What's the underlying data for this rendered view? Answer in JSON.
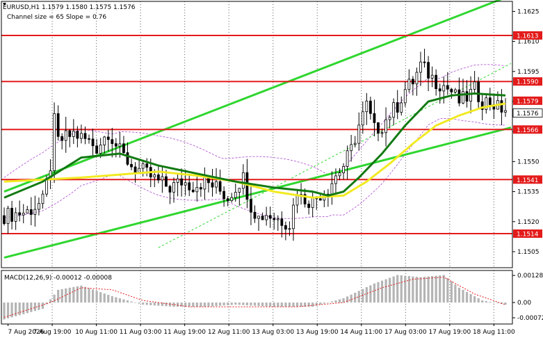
{
  "header": {
    "symbol_line": "EURUSD,H1  1.1579 1.1580 1.1575 1.1576",
    "channel_line": "Channel size = 65 Slope = 0.76"
  },
  "macd": {
    "label": "MACD(12,26,9) -0.00012 -0.00008"
  },
  "chart_data": [
    {
      "type": "candlestick",
      "symbol": "EURUSD",
      "timeframe": "H1",
      "ohlc_last": {
        "open": 1.1579,
        "high": 1.158,
        "low": 1.1575,
        "close": 1.1576
      },
      "y_ticks": [
        1.1625,
        1.161,
        1.1595,
        1.158,
        1.1565,
        1.155,
        1.1535,
        1.152,
        1.1505
      ],
      "x_ticks": [
        "7 Aug 2026",
        "7 Aug 19:00",
        "10 Aug 11:00",
        "11 Aug 03:00",
        "11 Aug 19:00",
        "12 Aug 11:00",
        "13 Aug 03:00",
        "13 Aug 19:00",
        "14 Aug 11:00",
        "17 Aug 03:00",
        "17 Aug 19:00",
        "18 Aug 11:00"
      ],
      "ylim": [
        1.1497,
        1.163
      ],
      "price_levels": [
        {
          "value": 1.1613,
          "label": "1.1613"
        },
        {
          "value": 1.159,
          "label": "1.1590"
        },
        {
          "value": 1.1566,
          "label": "1.1566"
        },
        {
          "value": 1.1541,
          "label": "1.1541"
        },
        {
          "value": 1.1514,
          "label": "1.1514"
        }
      ],
      "price_tags": [
        {
          "value": 1.1579,
          "label": "1.1579"
        },
        {
          "value": 1.1576,
          "label": "1.1576"
        }
      ],
      "close_path": [
        [
          0,
          1.1523
        ],
        [
          6,
          1.1525
        ],
        [
          10,
          1.153
        ],
        [
          12,
          1.1548
        ],
        [
          13,
          1.157
        ],
        [
          14,
          1.156
        ],
        [
          16,
          1.1562
        ],
        [
          18,
          1.1564
        ],
        [
          22,
          1.156
        ],
        [
          24,
          1.1557
        ],
        [
          27,
          1.1565
        ],
        [
          30,
          1.1555
        ],
        [
          33,
          1.1548
        ],
        [
          36,
          1.1545
        ],
        [
          40,
          1.154
        ],
        [
          43,
          1.1537
        ],
        [
          46,
          1.154
        ],
        [
          49,
          1.1538
        ],
        [
          52,
          1.154
        ],
        [
          55,
          1.1537
        ],
        [
          58,
          1.1532
        ],
        [
          61,
          1.154
        ],
        [
          62,
          1.1542
        ],
        [
          64,
          1.1528
        ],
        [
          66,
          1.1522
        ],
        [
          68,
          1.1524
        ],
        [
          70,
          1.1522
        ],
        [
          73,
          1.152
        ],
        [
          74,
          1.1519
        ],
        [
          76,
          1.1536
        ],
        [
          77,
          1.1532
        ],
        [
          80,
          1.153
        ],
        [
          82,
          1.1534
        ],
        [
          84,
          1.1537
        ],
        [
          86,
          1.1543
        ],
        [
          88,
          1.1548
        ],
        [
          90,
          1.1556
        ],
        [
          92,
          1.1568
        ],
        [
          94,
          1.1578
        ],
        [
          96,
          1.1566
        ],
        [
          98,
          1.1568
        ],
        [
          100,
          1.1574
        ],
        [
          102,
          1.1578
        ],
        [
          104,
          1.1586
        ],
        [
          106,
          1.159
        ],
        [
          108,
          1.1598
        ],
        [
          110,
          1.1594
        ],
        [
          112,
          1.159
        ],
        [
          114,
          1.1588
        ],
        [
          116,
          1.1585
        ],
        [
          118,
          1.158
        ],
        [
          120,
          1.1582
        ],
        [
          122,
          1.1586
        ],
        [
          124,
          1.158
        ],
        [
          126,
          1.158
        ],
        [
          128,
          1.1577
        ],
        [
          130,
          1.1576
        ]
      ],
      "ma_green": [
        [
          0,
          1.1532
        ],
        [
          10,
          1.154
        ],
        [
          20,
          1.1552
        ],
        [
          30,
          1.1554
        ],
        [
          40,
          1.1548
        ],
        [
          50,
          1.1544
        ],
        [
          60,
          1.154
        ],
        [
          70,
          1.1537
        ],
        [
          80,
          1.1535
        ],
        [
          84,
          1.1533
        ],
        [
          88,
          1.1535
        ],
        [
          92,
          1.1542
        ],
        [
          98,
          1.1554
        ],
        [
          104,
          1.1568
        ],
        [
          110,
          1.158
        ],
        [
          116,
          1.1583
        ],
        [
          122,
          1.1584
        ],
        [
          130,
          1.1583
        ]
      ],
      "ma_yellow": [
        [
          0,
          1.154
        ],
        [
          20,
          1.1542
        ],
        [
          40,
          1.1545
        ],
        [
          50,
          1.1543
        ],
        [
          60,
          1.154
        ],
        [
          70,
          1.1535
        ],
        [
          80,
          1.1532
        ],
        [
          88,
          1.1533
        ],
        [
          94,
          1.154
        ],
        [
          100,
          1.1549
        ],
        [
          106,
          1.1559
        ],
        [
          112,
          1.1568
        ],
        [
          118,
          1.1573
        ],
        [
          124,
          1.1577
        ],
        [
          130,
          1.1579
        ]
      ],
      "channel": {
        "lower": [
          [
            0,
            1.1502
          ],
          [
            130,
            1.1567
          ]
        ],
        "upper": [
          [
            0,
            1.1535
          ],
          [
            130,
            1.1633
          ]
        ],
        "mid": [
          [
            40,
            1.1507
          ],
          [
            130,
            1.1599
          ]
        ]
      },
      "colors": {
        "level": "#e31b1b",
        "channel": "#2fd62f",
        "ma_green": "#127a12",
        "ma_yellow": "#f2ea22",
        "envelope": "#b35bd6",
        "candle": "#000000"
      }
    },
    {
      "type": "histogram",
      "name": "MACD(12,26,9)",
      "values_text": "-0.00012 -0.00008",
      "y_ticks": [
        "0.00128",
        "0.00",
        "-0.00072"
      ],
      "histogram_path": [
        [
          0,
          -0.0008
        ],
        [
          10,
          -0.0003
        ],
        [
          14,
          0.0006
        ],
        [
          20,
          0.0008
        ],
        [
          28,
          0.0003
        ],
        [
          36,
          -0.0001
        ],
        [
          44,
          -0.0002
        ],
        [
          52,
          -0.0002
        ],
        [
          60,
          -0.0001
        ],
        [
          70,
          -0.0002
        ],
        [
          80,
          -0.0002
        ],
        [
          88,
          0.0002
        ],
        [
          96,
          0.0009
        ],
        [
          102,
          0.0013
        ],
        [
          108,
          0.0012
        ],
        [
          114,
          0.0013
        ],
        [
          118,
          0.0007
        ],
        [
          124,
          0.0001
        ],
        [
          130,
          -0.0001
        ]
      ],
      "signal_path": [
        [
          0,
          -0.0007
        ],
        [
          12,
          0.0
        ],
        [
          20,
          0.0007
        ],
        [
          28,
          0.0006
        ],
        [
          36,
          0.0001
        ],
        [
          48,
          -0.0002
        ],
        [
          60,
          -0.0002
        ],
        [
          76,
          -0.0002
        ],
        [
          88,
          0.0
        ],
        [
          98,
          0.0007
        ],
        [
          106,
          0.0011
        ],
        [
          114,
          0.0012
        ],
        [
          122,
          0.0004
        ],
        [
          130,
          -0.0001
        ]
      ]
    }
  ]
}
